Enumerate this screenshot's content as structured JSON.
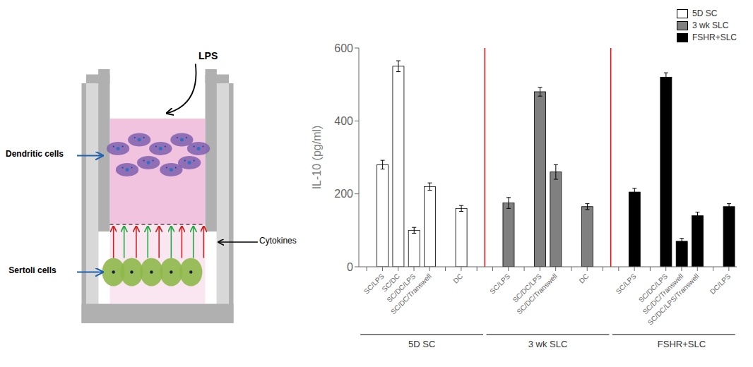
{
  "chart_data": {
    "type": "bar",
    "ylabel": "IL-10 (pg/ml)",
    "annotations": [
      "LPS",
      "Dendritic cells",
      "Sertoli cells",
      "Cytokines"
    ],
    "categories": [
      null,
      "SC/LPS",
      "SC/DC",
      "SC/DC/LPS",
      "SC/DC/Transwell",
      null,
      "DC",
      null,
      null,
      "SC/LPS",
      null,
      "SC/DC/LPS",
      "SC/DC/Transwell",
      null,
      "DC",
      null,
      null,
      "SC/LPS",
      null,
      "SC/DC/LPS",
      "SC/DC/Transwell",
      "SC/DC/LPS/Transwell",
      null,
      "DC/LPS"
    ],
    "series": [
      {
        "name": "5D SC",
        "color": "#ffffff",
        "values": [
          0,
          280,
          550,
          100,
          220,
          0,
          160,
          0,
          null,
          null,
          null,
          null,
          null,
          null,
          null,
          null,
          null,
          null,
          null,
          null,
          null,
          null,
          null,
          null
        ],
        "errors": [
          0,
          12,
          15,
          8,
          10,
          0,
          8,
          0,
          null,
          null,
          null,
          null,
          null,
          null,
          null,
          null,
          null,
          null,
          null,
          null,
          null,
          null,
          null,
          null
        ]
      },
      {
        "name": "3 wk SLC",
        "color": "#808080",
        "values": [
          null,
          null,
          null,
          null,
          null,
          null,
          null,
          null,
          0,
          175,
          0,
          480,
          260,
          0,
          165,
          0,
          null,
          null,
          null,
          null,
          null,
          null,
          null,
          null
        ],
        "errors": [
          null,
          null,
          null,
          null,
          null,
          null,
          null,
          null,
          0,
          15,
          0,
          12,
          20,
          0,
          8,
          0,
          null,
          null,
          null,
          null,
          null,
          null,
          null,
          null
        ]
      },
      {
        "name": "FSHR+SLC",
        "color": "#000000",
        "values": [
          null,
          null,
          null,
          null,
          null,
          null,
          null,
          null,
          null,
          null,
          null,
          null,
          null,
          null,
          null,
          null,
          0,
          205,
          0,
          520,
          70,
          140,
          0,
          165
        ],
        "errors": [
          null,
          null,
          null,
          null,
          null,
          null,
          null,
          null,
          null,
          null,
          null,
          null,
          null,
          null,
          null,
          null,
          0,
          10,
          0,
          12,
          8,
          10,
          0,
          8
        ]
      }
    ],
    "ylim": [
      0,
      600
    ],
    "yticks": [
      0,
      200,
      400,
      600
    ],
    "grid": false,
    "legend": "upper right"
  }
}
